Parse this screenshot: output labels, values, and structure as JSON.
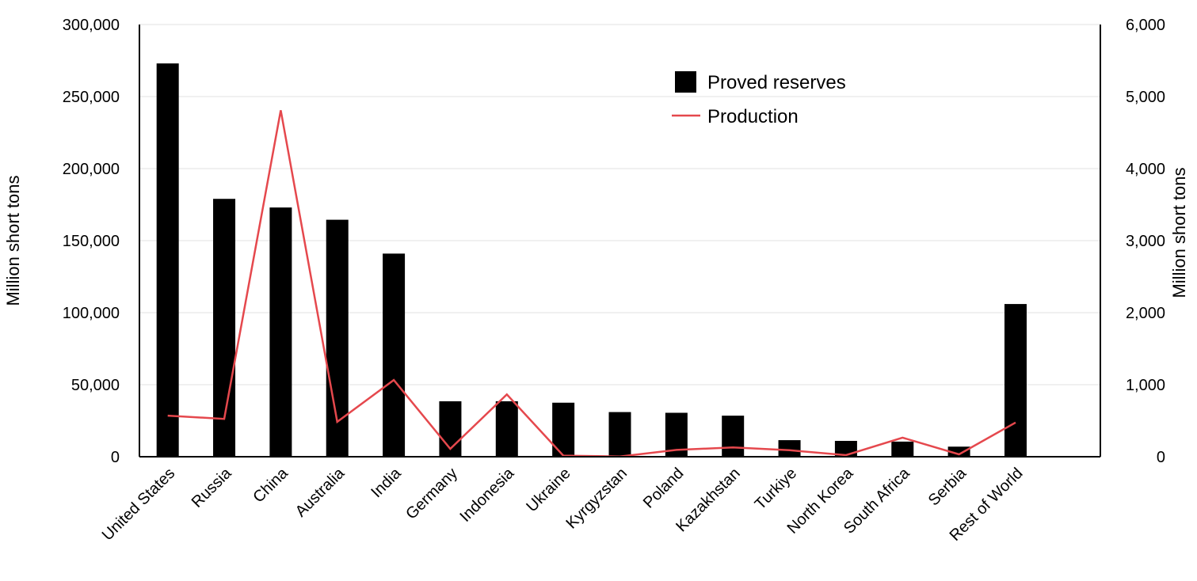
{
  "chart_data": {
    "type": "bar+line",
    "categories": [
      "United States",
      "Russia",
      "China",
      "Australia",
      "India",
      "Germany",
      "Indonesia",
      "Ukraine",
      "Kyrgyzstan",
      "Poland",
      "Kazakhstan",
      "Turkiye",
      "North Korea",
      "South Africa",
      "Serbia",
      "Rest of World"
    ],
    "series": [
      {
        "name": "Proved reserves",
        "type": "bar",
        "axis": "left",
        "color": "#000000",
        "values": [
          273000,
          179000,
          173000,
          164500,
          141000,
          38500,
          38500,
          37500,
          31000,
          30500,
          28500,
          11500,
          11000,
          10500,
          7000,
          106000
        ]
      },
      {
        "name": "Production",
        "type": "line",
        "axis": "right",
        "color": "#e5484d",
        "values": [
          570,
          525,
          4810,
          485,
          1065,
          110,
          865,
          15,
          3,
          95,
          130,
          90,
          22,
          265,
          33,
          475
        ]
      }
    ],
    "ylabel_left": "Million short tons",
    "ylabel_right": "Million short tons",
    "ylim_left": [
      0,
      300000
    ],
    "ylim_right": [
      0,
      6000
    ],
    "yticks_left": [
      "0",
      "50,000",
      "100,000",
      "150,000",
      "200,000",
      "250,000",
      "300,000"
    ],
    "yticks_right": [
      "0",
      "1,000",
      "2,000",
      "3,000",
      "4,000",
      "5,000",
      "6,000"
    ],
    "grid": true,
    "legend": "top-center"
  }
}
